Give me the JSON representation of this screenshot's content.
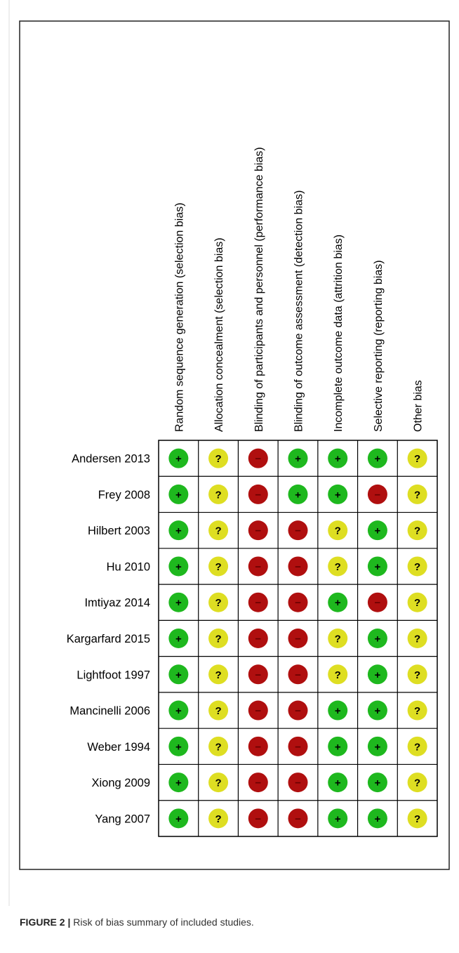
{
  "figure": {
    "domains": [
      "Random sequence generation (selection bias)",
      "Allocation concealment (selection bias)",
      "Blinding of participants and personnel (performance bias)",
      "Blinding of outcome assessment (detection bias)",
      "Incomplete outcome data (attrition bias)",
      "Selective reporting (reporting bias)",
      "Other bias"
    ],
    "symbol_colors": {
      "+": "#1eb81e",
      "?": "#dede22",
      "−": "#b00f0f"
    },
    "studies": [
      {
        "name": "Andersen 2013",
        "judgements": [
          "+",
          "?",
          "−",
          "+",
          "+",
          "+",
          "?"
        ]
      },
      {
        "name": "Frey 2008",
        "judgements": [
          "+",
          "?",
          "−",
          "+",
          "+",
          "−",
          "?"
        ]
      },
      {
        "name": "Hilbert 2003",
        "judgements": [
          "+",
          "?",
          "−",
          "−",
          "?",
          "+",
          "?"
        ]
      },
      {
        "name": "Hu 2010",
        "judgements": [
          "+",
          "?",
          "−",
          "−",
          "?",
          "+",
          "?"
        ]
      },
      {
        "name": "Imtiyaz 2014",
        "judgements": [
          "+",
          "?",
          "−",
          "−",
          "+",
          "−",
          "?"
        ]
      },
      {
        "name": "Kargarfard 2015",
        "judgements": [
          "+",
          "?",
          "−",
          "−",
          "?",
          "+",
          "?"
        ]
      },
      {
        "name": "Lightfoot 1997",
        "judgements": [
          "+",
          "?",
          "−",
          "−",
          "?",
          "+",
          "?"
        ]
      },
      {
        "name": "Mancinelli 2006",
        "judgements": [
          "+",
          "?",
          "−",
          "−",
          "+",
          "+",
          "?"
        ]
      },
      {
        "name": "Weber  1994",
        "judgements": [
          "+",
          "?",
          "−",
          "−",
          "+",
          "+",
          "?"
        ]
      },
      {
        "name": "Xiong 2009",
        "judgements": [
          "+",
          "?",
          "−",
          "−",
          "+",
          "+",
          "?"
        ]
      },
      {
        "name": "Yang 2007",
        "judgements": [
          "+",
          "?",
          "−",
          "−",
          "+",
          "+",
          "?"
        ]
      }
    ]
  },
  "caption": {
    "label": "FIGURE 2 |",
    "text": "Risk of bias summary of included studies."
  }
}
